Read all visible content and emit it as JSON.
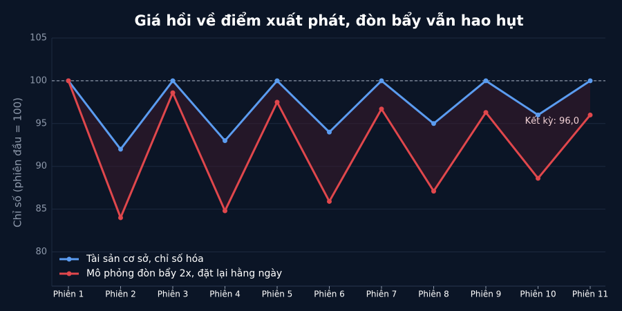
{
  "chart_data": {
    "type": "line",
    "title": "Giá hồi về điểm xuất phát, đòn bẩy vẫn hao hụt",
    "y_label": "Chỉ số (phiên đầu = 100)",
    "categories": [
      "Phiên 1",
      "Phiên 2",
      "Phiên 3",
      "Phiên 4",
      "Phiên 5",
      "Phiên 6",
      "Phiên 7",
      "Phiên 8",
      "Phiên 9",
      "Phiên 10",
      "Phiên 11"
    ],
    "series": [
      {
        "name": "Tài sản cơ sở, chỉ số hóa",
        "color": "#5b9cf0",
        "values": [
          100,
          92,
          100,
          93,
          100,
          94,
          100,
          95,
          100,
          96,
          100
        ]
      },
      {
        "name": "Mô phỏng đòn bẩy 2x, đặt lại hằng ngày",
        "color": "#e0474c",
        "values": [
          100,
          84,
          98.6,
          84.8,
          97.5,
          85.9,
          96.7,
          87.1,
          96.3,
          88.6,
          96.0
        ]
      }
    ],
    "ylim": [
      76,
      105
    ],
    "yticks": [
      80,
      85,
      90,
      95,
      100,
      105
    ],
    "grid": true,
    "reference_line": 100,
    "annotation": "Kết kỳ: 96,0",
    "legend": "lower left"
  }
}
